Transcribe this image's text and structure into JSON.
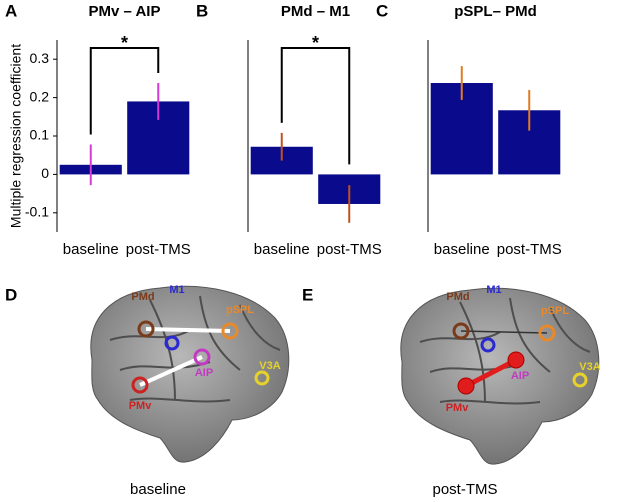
{
  "chart_data": [
    {
      "type": "bar",
      "panel": "A",
      "title": "PMv – AIP",
      "ylabel": "Multiple regression coefficient",
      "categories": [
        "baseline",
        "post-TMS"
      ],
      "values": [
        0.025,
        0.19
      ],
      "errors": [
        0.053,
        0.048
      ],
      "color": "#0a0a8c",
      "error_color": "#d63ad6",
      "ylim": [
        -0.15,
        0.35
      ],
      "yticks": [
        -0.1,
        0,
        0.1,
        0.2,
        0.3
      ],
      "significance": "*"
    },
    {
      "type": "bar",
      "panel": "B",
      "title": "PMd – M1",
      "categories": [
        "baseline",
        "post-TMS"
      ],
      "values": [
        0.072,
        -0.077
      ],
      "errors": [
        0.036,
        0.049
      ],
      "color": "#0a0a8c",
      "error_color": "#c0501e",
      "ylim": [
        -0.15,
        0.35
      ],
      "significance": "*"
    },
    {
      "type": "bar",
      "panel": "C",
      "title": "pSPL– PMd",
      "categories": [
        "baseline",
        "post-TMS"
      ],
      "values": [
        0.238,
        0.167
      ],
      "errors": [
        0.044,
        0.053
      ],
      "color": "#0a0a8c",
      "error_color": "#e07b22",
      "ylim": [
        -0.15,
        0.35
      ]
    }
  ],
  "brain_panels": [
    {
      "panel": "D",
      "caption": "baseline",
      "labels": {
        "pmd": "PMd",
        "m1": "M1",
        "pspl": "pSPL",
        "v3a": "V3A",
        "aip": "AIP",
        "pmv": "PMv"
      }
    },
    {
      "panel": "E",
      "caption": "post-TMS",
      "labels": {
        "pmd": "PMd",
        "m1": "M1",
        "pspl": "pSPL",
        "v3a": "V3A",
        "aip": "AIP",
        "pmv": "PMv"
      }
    }
  ]
}
